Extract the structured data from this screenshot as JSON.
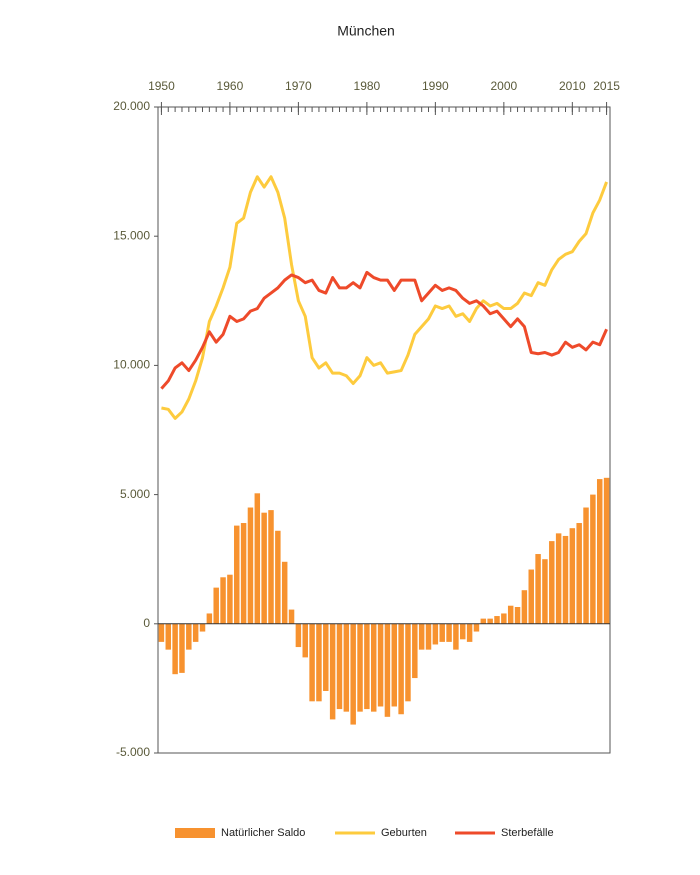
{
  "chart_data": {
    "type": "combo",
    "title": "München",
    "x": [
      1950,
      1951,
      1952,
      1953,
      1954,
      1955,
      1956,
      1957,
      1958,
      1959,
      1960,
      1961,
      1962,
      1963,
      1964,
      1965,
      1966,
      1967,
      1968,
      1969,
      1970,
      1971,
      1972,
      1973,
      1974,
      1975,
      1976,
      1977,
      1978,
      1979,
      1980,
      1981,
      1982,
      1983,
      1984,
      1985,
      1986,
      1987,
      1988,
      1989,
      1990,
      1991,
      1992,
      1993,
      1994,
      1995,
      1996,
      1997,
      1998,
      1999,
      2000,
      2001,
      2002,
      2003,
      2004,
      2005,
      2006,
      2007,
      2008,
      2009,
      2010,
      2011,
      2012,
      2013,
      2014,
      2015
    ],
    "series": [
      {
        "name": "Natürlicher Saldo",
        "kind": "bar",
        "color": "#f7922f",
        "values": [
          -700,
          -1000,
          -1950,
          -1900,
          -1000,
          -700,
          -300,
          400,
          1400,
          1800,
          1900,
          3800,
          3900,
          4500,
          5050,
          4300,
          4400,
          3600,
          2400,
          550,
          -900,
          -1300,
          -3000,
          -3000,
          -2600,
          -3700,
          -3300,
          -3400,
          -3900,
          -3400,
          -3300,
          -3400,
          -3200,
          -3600,
          -3200,
          -3500,
          -3000,
          -2100,
          -1000,
          -1000,
          -800,
          -700,
          -700,
          -1000,
          -600,
          -700,
          -300,
          200,
          200,
          300,
          400,
          700,
          650,
          1300,
          2100,
          2700,
          2500,
          3200,
          3500,
          3400,
          3700,
          3900,
          4500,
          5000,
          5600,
          5650
        ]
      },
      {
        "name": "Geburten",
        "kind": "line",
        "color": "#fdcb3e",
        "values": [
          8350,
          8300,
          7950,
          8200,
          8700,
          9400,
          10300,
          11700,
          12300,
          13000,
          13800,
          15500,
          15700,
          16700,
          17300,
          16900,
          17300,
          16700,
          15700,
          13900,
          12500,
          11900,
          10300,
          9900,
          10100,
          9700,
          9700,
          9600,
          9300,
          9600,
          10300,
          10000,
          10100,
          9700,
          9750,
          9800,
          10400,
          11200,
          11500,
          11800,
          12300,
          12200,
          12300,
          11900,
          12000,
          11700,
          12200,
          12500,
          12300,
          12400,
          12200,
          12200,
          12400,
          12800,
          12700,
          13200,
          13100,
          13700,
          14100,
          14300,
          14400,
          14800,
          15100,
          15900,
          16400,
          17100
        ]
      },
      {
        "name": "Sterbefälle",
        "kind": "line",
        "color": "#ee4a2a",
        "values": [
          9100,
          9400,
          9900,
          10100,
          9800,
          10200,
          10700,
          11300,
          10900,
          11200,
          11900,
          11700,
          11800,
          12100,
          12200,
          12600,
          12800,
          13000,
          13300,
          13500,
          13400,
          13200,
          13300,
          12900,
          12800,
          13400,
          13000,
          13000,
          13200,
          13000,
          13600,
          13400,
          13300,
          13300,
          12900,
          13300,
          13300,
          13300,
          12500,
          12800,
          13100,
          12900,
          13000,
          12900,
          12600,
          12400,
          12500,
          12300,
          12000,
          12100,
          11800,
          11500,
          11800,
          11500,
          10500,
          10450,
          10500,
          10400,
          10500,
          10900,
          10700,
          10800,
          10600,
          10900,
          10800,
          11400
        ]
      }
    ],
    "xlim": [
      1949.5,
      2015.5
    ],
    "xticks": [
      1950,
      1960,
      1970,
      1980,
      1990,
      2000,
      2010,
      2015
    ],
    "ylim": [
      -5000,
      20000
    ],
    "yticks": [
      {
        "value": -5000,
        "label": "-5.000"
      },
      0,
      {
        "value": 5000,
        "label": "5.000"
      },
      {
        "value": 10000,
        "label": "10.000"
      },
      {
        "value": 15000,
        "label": "15.000"
      },
      {
        "value": 20000,
        "label": "20.000"
      }
    ],
    "legend": "bottom"
  }
}
